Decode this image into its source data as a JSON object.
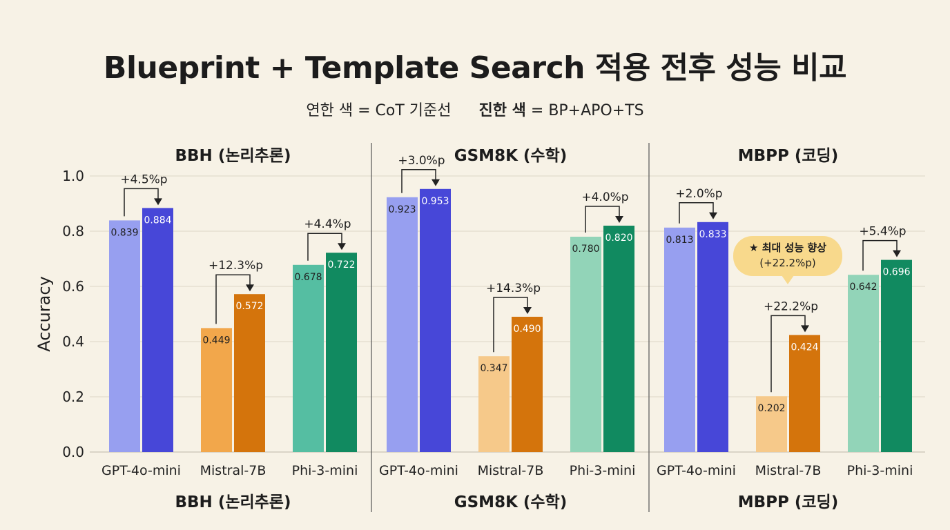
{
  "title": "Blueprint + Template Search 적용 전후 성능 비교",
  "legend": {
    "light_label": "연한 색 = CoT 기준선",
    "dark_label_strong": "진한 색",
    "dark_label_rest": " = BP+APO+TS"
  },
  "callout": {
    "line1": "★ 최대 성능 향상",
    "line2": "(+22.2%p)"
  },
  "chart_data": {
    "type": "bar",
    "ylabel": "Accuracy",
    "ylim": [
      0,
      1.0
    ],
    "yticks": [
      "0.0",
      "0.2",
      "0.4",
      "0.6",
      "0.8",
      "1.0"
    ],
    "grid": true,
    "series_names": [
      "CoT 기준선",
      "BP+APO+TS"
    ],
    "panels": [
      {
        "name": "BBH (논리추론)",
        "categories": [
          "GPT-4o-mini",
          "Mistral-7B",
          "Phi-3-mini"
        ],
        "baseline": [
          0.839,
          0.449,
          0.678
        ],
        "improved": [
          0.884,
          0.572,
          0.722
        ],
        "baseline_labels": [
          "0.839",
          "0.449",
          "0.678"
        ],
        "improved_labels": [
          "0.884",
          "0.572",
          "0.722"
        ],
        "deltas": [
          "+4.5%p",
          "+12.3%p",
          "+4.4%p"
        ]
      },
      {
        "name": "GSM8K (수학)",
        "categories": [
          "GPT-4o-mini",
          "Mistral-7B",
          "Phi-3-mini"
        ],
        "baseline": [
          0.923,
          0.347,
          0.78
        ],
        "improved": [
          0.953,
          0.49,
          0.82
        ],
        "baseline_labels": [
          "0.923",
          "0.347",
          "0.780"
        ],
        "improved_labels": [
          "0.953",
          "0.490",
          "0.820"
        ],
        "deltas": [
          "+3.0%p",
          "+14.3%p",
          "+4.0%p"
        ]
      },
      {
        "name": "MBPP (코딩)",
        "categories": [
          "GPT-4o-mini",
          "Mistral-7B",
          "Phi-3-mini"
        ],
        "baseline": [
          0.813,
          0.202,
          0.642
        ],
        "improved": [
          0.833,
          0.424,
          0.696
        ],
        "baseline_labels": [
          "0.813",
          "0.202",
          "0.642"
        ],
        "improved_labels": [
          "0.833",
          "0.424",
          "0.696"
        ],
        "deltas": [
          "+2.0%p",
          "+22.2%p",
          "+5.4%p"
        ]
      }
    ],
    "colors": {
      "gpt_light": "#979ff0",
      "gpt_dark": "#4747d8",
      "mistral_light": "#f2a74b",
      "mistral_dark": "#d4740c",
      "phi_light": "#55bea2",
      "phi_dark": "#118a60",
      "mistral_light_alt": "#f6c98a",
      "phi_light_alt": "#92d4b8"
    }
  }
}
